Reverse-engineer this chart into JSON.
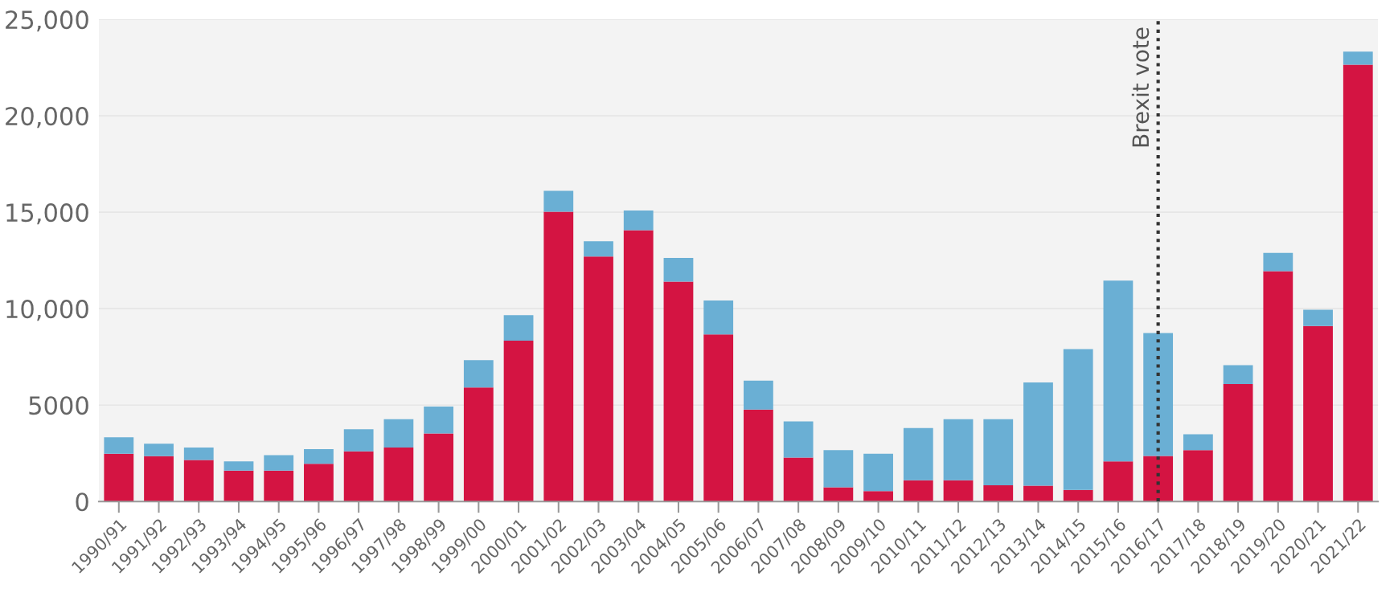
{
  "chart_data": {
    "type": "bar",
    "stacked": true,
    "categories": [
      "1990/91",
      "1991/92",
      "1992/93",
      "1993/94",
      "1994/95",
      "1995/96",
      "1996/97",
      "1997/98",
      "1998/99",
      "1999/00",
      "2000/01",
      "2001/02",
      "2002/03",
      "2003/04",
      "2004/05",
      "2005/06",
      "2006/07",
      "2007/08",
      "2008/09",
      "2009/10",
      "2010/11",
      "2011/12",
      "2012/13",
      "2013/14",
      "2014/15",
      "2015/16",
      "2016/17",
      "2017/18",
      "2018/19",
      "2019/20",
      "2020/21",
      "2021/22"
    ],
    "series": [
      {
        "color": "#d41442",
        "values": [
          2480,
          2350,
          2160,
          1600,
          1600,
          1960,
          2600,
          2800,
          3530,
          5910,
          8340,
          15030,
          12700,
          14070,
          11400,
          8660,
          4770,
          2280,
          740,
          540,
          1100,
          1100,
          840,
          820,
          600,
          2080,
          2360,
          2670,
          6090,
          11940,
          9100,
          22650
        ]
      },
      {
        "color": "#6aafd4",
        "values": [
          850,
          650,
          640,
          480,
          800,
          760,
          1150,
          1470,
          1400,
          1420,
          1320,
          1080,
          800,
          1020,
          1230,
          1760,
          1500,
          1870,
          1930,
          1940,
          2710,
          3170,
          3430,
          5350,
          7300,
          9380,
          6380,
          820,
          980,
          950,
          840,
          680
        ]
      }
    ],
    "ylim": [
      0,
      25000
    ],
    "yticks": [
      0,
      5000,
      {
        "value": 10000,
        "label": "10,000"
      },
      {
        "value": 15000,
        "label": "15,000"
      },
      {
        "value": 20000,
        "label": "20,000"
      },
      {
        "value": 25000,
        "label": "25,000"
      }
    ],
    "grid": "y",
    "ref_lines": [
      {
        "axis": "x",
        "value": "2016/17",
        "label": "Brexit vote",
        "color": "#333333",
        "line_style": "dotted"
      }
    ]
  }
}
